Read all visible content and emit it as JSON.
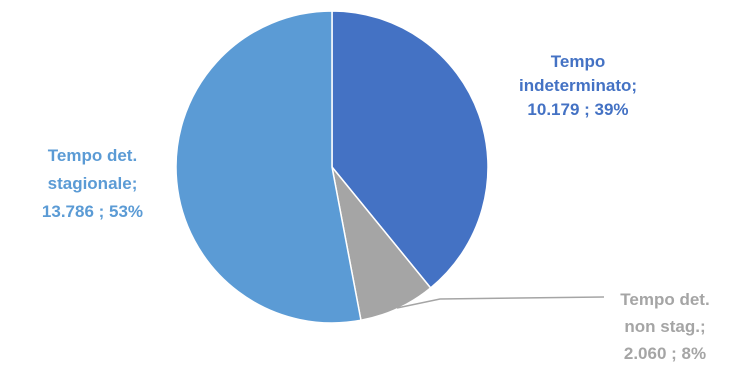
{
  "chart_data": {
    "type": "pie",
    "slices": [
      {
        "label_lines": [
          "Tempo",
          "indeterminato;",
          "10.179 ; 39%"
        ],
        "value": 10179,
        "percent": 39,
        "color": "#4472C4"
      },
      {
        "label_lines": [
          "Tempo det.",
          "non stag.;",
          "2.060 ; 8%"
        ],
        "value": 2060,
        "percent": 8,
        "color": "#A5A5A5"
      },
      {
        "label_lines": [
          "Tempo  det.",
          "stagionale;",
          "13.786 ; 53%"
        ],
        "value": 13786,
        "percent": 53,
        "color": "#5B9BD5"
      }
    ]
  }
}
